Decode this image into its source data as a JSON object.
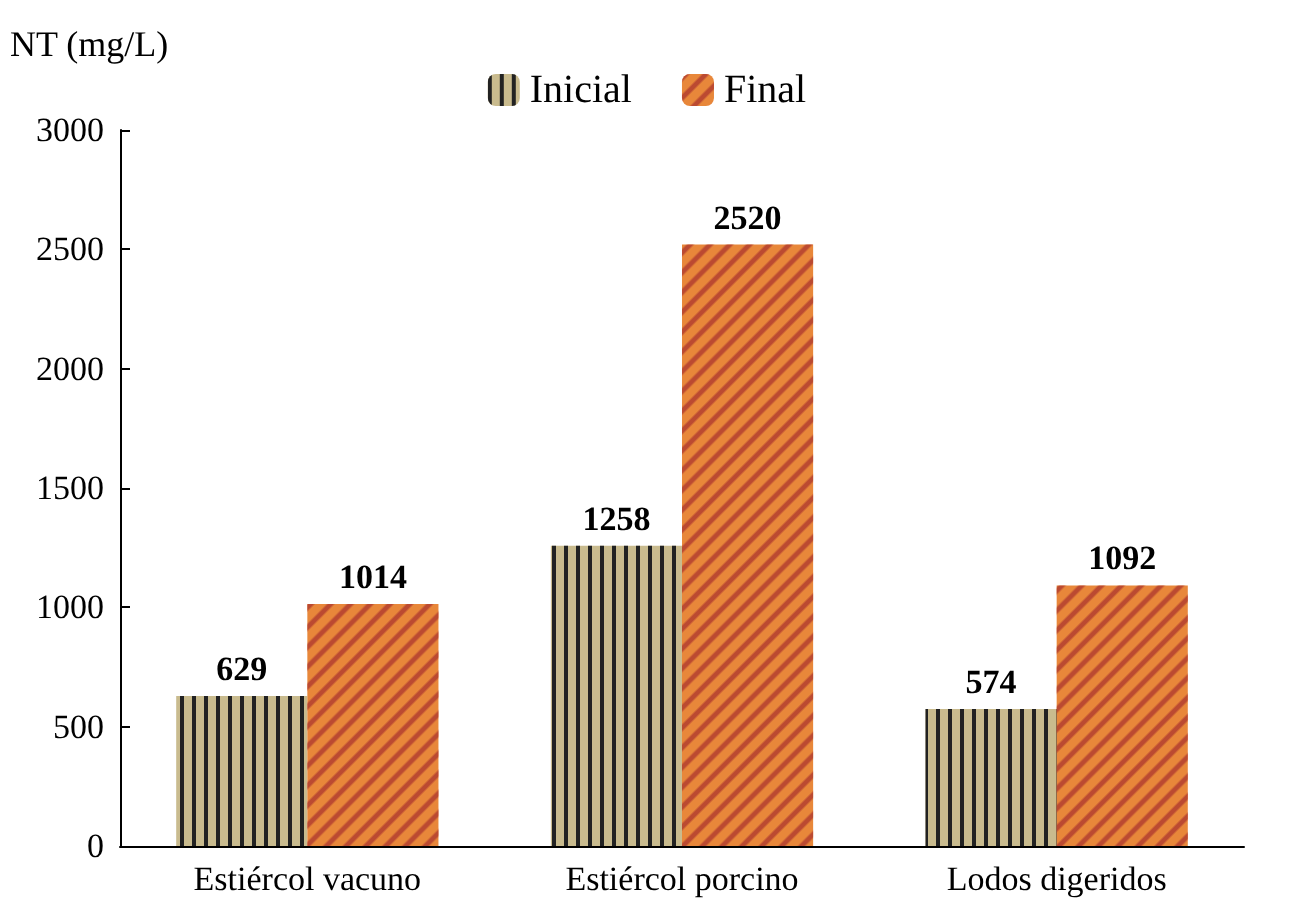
{
  "chart_data": {
    "type": "bar",
    "ylabel": "NT (mg/L)",
    "categories": [
      "Estiércol vacuno",
      "Estiércol porcino",
      "Lodos digeridos"
    ],
    "series": [
      {
        "name": "Inicial",
        "color": "#c9bb8e",
        "values": [
          629,
          1258,
          574
        ]
      },
      {
        "name": "Final",
        "color": "#e8873a",
        "values": [
          1014,
          2520,
          1092
        ]
      }
    ],
    "ylim": [
      0,
      3000
    ],
    "yticks": [
      0,
      500,
      1000,
      1500,
      2000,
      2500,
      3000
    ],
    "grid": false,
    "legend": "top",
    "data_labels": true
  }
}
